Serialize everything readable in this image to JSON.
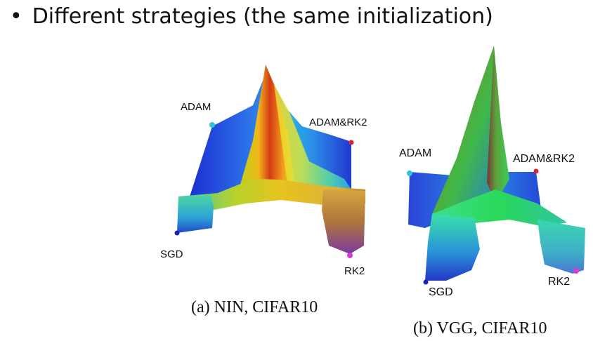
{
  "heading": {
    "bullet": "•",
    "text": "Different strategies (the same initialization)"
  },
  "figures": [
    {
      "caption": "(a) NIN, CIFAR10",
      "labels": {
        "top_left": "ADAM",
        "top_right": "ADAM&RK2",
        "bottom_left": "SGD",
        "bottom_right": "RK2"
      }
    },
    {
      "caption": "(b) VGG, CIFAR10",
      "labels": {
        "top_left": "ADAM",
        "top_right": "ADAM&RK2",
        "bottom_left": "SGD",
        "bottom_right": "RK2"
      }
    }
  ],
  "colors": {
    "adam_marker": "#2ec4d6",
    "adam_rk2_marker": "#d8262f",
    "sgd_marker": "#1d1fb8",
    "rk2_marker": "#d63ad6"
  }
}
